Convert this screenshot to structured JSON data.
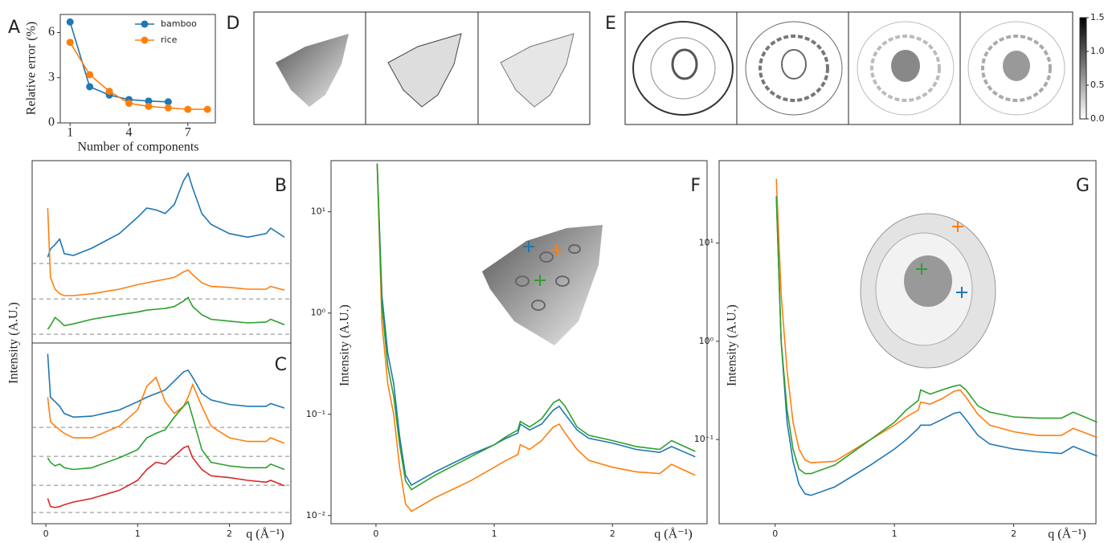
{
  "chart_data": [
    {
      "type": "line",
      "panel": "A",
      "xlabel": "Number of components",
      "ylabel": "Relative error (%)",
      "xlim": [
        0.5,
        8.4
      ],
      "ylim": [
        0,
        7.2
      ],
      "xticks": [
        1,
        4,
        7
      ],
      "yticks": [
        0,
        3,
        6
      ],
      "markers": true,
      "legend": "upper right",
      "series": [
        {
          "name": "bamboo",
          "color": "#1f77b4",
          "x": [
            1,
            2,
            3,
            4,
            5,
            6
          ],
          "values": [
            6.7,
            2.4,
            1.85,
            1.55,
            1.45,
            1.4
          ]
        },
        {
          "name": "rice",
          "color": "#ff7f0e",
          "x": [
            1,
            2,
            3,
            4,
            5,
            6,
            7,
            8
          ],
          "values": [
            5.35,
            3.2,
            2.1,
            1.3,
            1.1,
            1.0,
            0.9,
            0.9
          ]
        }
      ]
    },
    {
      "type": "line",
      "panel": "B",
      "ylabel": "Intensity (A.U.)",
      "xlim": [
        -0.15,
        2.67
      ],
      "ylim": [
        0,
        10
      ],
      "x": [
        0.02,
        0.05,
        0.1,
        0.15,
        0.2,
        0.3,
        0.5,
        0.8,
        1.0,
        1.1,
        1.2,
        1.3,
        1.4,
        1.5,
        1.55,
        1.6,
        1.7,
        1.8,
        2.0,
        2.2,
        2.4,
        2.45,
        2.6
      ],
      "series": [
        {
          "color": "#1f77b4",
          "baseline": 4.36,
          "values": [
            4.7,
            5.15,
            5.4,
            5.7,
            4.9,
            4.8,
            5.2,
            6.0,
            6.9,
            7.4,
            7.3,
            7.1,
            7.6,
            8.9,
            9.3,
            8.5,
            7.1,
            6.5,
            6.0,
            5.8,
            6.0,
            6.3,
            5.8
          ]
        },
        {
          "color": "#ff7f0e",
          "baseline": 2.42,
          "values": [
            7.4,
            3.6,
            2.95,
            2.7,
            2.6,
            2.6,
            2.7,
            2.95,
            3.2,
            3.3,
            3.4,
            3.5,
            3.6,
            3.9,
            4.0,
            3.75,
            3.3,
            3.1,
            3.05,
            2.95,
            2.95,
            3.1,
            2.9
          ]
        },
        {
          "color": "#2ca02c",
          "baseline": 0.48,
          "values": [
            0.75,
            0.95,
            1.4,
            1.2,
            0.95,
            1.05,
            1.3,
            1.55,
            1.7,
            1.8,
            1.85,
            1.9,
            2.0,
            2.3,
            2.5,
            2.0,
            1.55,
            1.3,
            1.2,
            1.1,
            1.15,
            1.3,
            1.0
          ]
        }
      ]
    },
    {
      "type": "line",
      "panel": "C",
      "xlabel": "q (Å⁻¹)",
      "xlim": [
        -0.15,
        2.67
      ],
      "ylim": [
        0,
        10
      ],
      "xticks": [
        0,
        1,
        2
      ],
      "x": [
        0.02,
        0.05,
        0.1,
        0.15,
        0.2,
        0.3,
        0.5,
        0.8,
        1.0,
        1.1,
        1.2,
        1.3,
        1.4,
        1.5,
        1.55,
        1.6,
        1.7,
        1.8,
        2.0,
        2.2,
        2.4,
        2.45,
        2.6
      ],
      "series": [
        {
          "color": "#1f77b4",
          "baseline": 5.33,
          "values": [
            9.4,
            7.0,
            6.75,
            6.5,
            6.1,
            5.9,
            5.95,
            6.3,
            6.75,
            7.0,
            7.2,
            7.4,
            7.9,
            8.4,
            8.5,
            8.1,
            7.2,
            6.85,
            6.6,
            6.5,
            6.5,
            6.65,
            6.4
          ]
        },
        {
          "color": "#ff7f0e",
          "baseline": 3.73,
          "values": [
            7.0,
            5.65,
            5.4,
            5.2,
            5.0,
            4.75,
            4.75,
            5.4,
            6.3,
            7.6,
            8.1,
            6.75,
            6.1,
            6.5,
            7.0,
            7.7,
            6.5,
            5.4,
            4.75,
            4.55,
            4.55,
            4.75,
            4.45
          ]
        },
        {
          "color": "#2ca02c",
          "baseline": 2.13,
          "values": [
            3.65,
            3.4,
            3.2,
            3.3,
            3.1,
            3.0,
            3.1,
            3.65,
            4.1,
            4.75,
            5.0,
            5.2,
            5.9,
            6.5,
            6.75,
            5.9,
            4.1,
            3.4,
            3.2,
            3.1,
            3.1,
            3.3,
            3.0
          ]
        },
        {
          "color": "#d62728",
          "baseline": 0.62,
          "values": [
            1.4,
            0.95,
            0.9,
            0.95,
            1.05,
            1.2,
            1.4,
            1.85,
            2.4,
            3.0,
            3.4,
            3.3,
            3.75,
            4.2,
            4.3,
            3.65,
            3.0,
            2.65,
            2.55,
            2.4,
            2.3,
            2.4,
            2.1
          ]
        }
      ]
    },
    {
      "type": "line",
      "panel": "F",
      "xlabel": "q (Å⁻¹)",
      "ylabel": "Intensity (A.U.)",
      "ylog": true,
      "xlim": [
        -0.38,
        2.8
      ],
      "ylim": [
        0.0083,
        32
      ],
      "xticks": [
        0,
        1,
        2
      ],
      "yticks": [
        {
          "value": 10,
          "label": "10¹"
        },
        {
          "value": 1,
          "label": "10⁰"
        },
        {
          "value": 0.1,
          "label": "10⁻¹"
        },
        {
          "value": 0.01,
          "label": "10⁻²"
        }
      ],
      "x": [
        0.01,
        0.05,
        0.1,
        0.15,
        0.2,
        0.25,
        0.3,
        0.5,
        0.8,
        1.0,
        1.1,
        1.2,
        1.22,
        1.3,
        1.4,
        1.5,
        1.55,
        1.6,
        1.7,
        1.8,
        2.0,
        2.2,
        2.4,
        2.5,
        2.7
      ],
      "series": [
        {
          "color": "#1f77b4",
          "values": [
            30,
            1.5,
            0.4,
            0.2,
            0.06,
            0.025,
            0.02,
            0.027,
            0.04,
            0.05,
            0.058,
            0.065,
            0.08,
            0.07,
            0.08,
            0.11,
            0.12,
            0.1,
            0.07,
            0.058,
            0.052,
            0.045,
            0.042,
            0.048,
            0.038
          ]
        },
        {
          "color": "#ff7f0e",
          "values": [
            30,
            0.8,
            0.2,
            0.1,
            0.03,
            0.013,
            0.011,
            0.015,
            0.022,
            0.03,
            0.035,
            0.04,
            0.05,
            0.045,
            0.055,
            0.075,
            0.08,
            0.065,
            0.045,
            0.035,
            0.03,
            0.027,
            0.026,
            0.032,
            0.025
          ]
        },
        {
          "color": "#2ca02c",
          "values": [
            30,
            1.2,
            0.3,
            0.15,
            0.05,
            0.022,
            0.018,
            0.025,
            0.038,
            0.05,
            0.06,
            0.07,
            0.085,
            0.075,
            0.09,
            0.13,
            0.14,
            0.12,
            0.075,
            0.062,
            0.055,
            0.048,
            0.045,
            0.055,
            0.043
          ]
        }
      ]
    },
    {
      "type": "line",
      "panel": "G",
      "xlabel": "q (Å⁻¹)",
      "ylabel": "Intensity (A.U.)",
      "ylog": true,
      "xlim": [
        -0.47,
        2.69
      ],
      "ylim": [
        0.0139,
        69
      ],
      "xticks": [
        0,
        1,
        2
      ],
      "yticks": [
        {
          "value": 10,
          "label": "10¹"
        },
        {
          "value": 1,
          "label": "10⁰"
        },
        {
          "value": 0.1,
          "label": "10⁻¹"
        }
      ],
      "x": [
        0.01,
        0.05,
        0.1,
        0.15,
        0.2,
        0.25,
        0.3,
        0.5,
        0.8,
        1.0,
        1.1,
        1.2,
        1.22,
        1.3,
        1.4,
        1.5,
        1.55,
        1.6,
        1.7,
        1.8,
        2.0,
        2.2,
        2.4,
        2.5,
        2.7
      ],
      "series": [
        {
          "color": "#1f77b4",
          "values": [
            30,
            1.0,
            0.15,
            0.06,
            0.035,
            0.028,
            0.027,
            0.033,
            0.055,
            0.08,
            0.1,
            0.13,
            0.14,
            0.14,
            0.16,
            0.185,
            0.19,
            0.16,
            0.11,
            0.09,
            0.08,
            0.075,
            0.072,
            0.085,
            0.068
          ]
        },
        {
          "color": "#ff7f0e",
          "values": [
            45,
            3,
            0.5,
            0.15,
            0.08,
            0.062,
            0.058,
            0.06,
            0.1,
            0.14,
            0.17,
            0.2,
            0.24,
            0.23,
            0.26,
            0.31,
            0.32,
            0.27,
            0.18,
            0.14,
            0.12,
            0.11,
            0.11,
            0.13,
            0.105
          ]
        },
        {
          "color": "#2ca02c",
          "values": [
            30,
            1.0,
            0.2,
            0.08,
            0.05,
            0.045,
            0.045,
            0.055,
            0.1,
            0.15,
            0.2,
            0.25,
            0.32,
            0.29,
            0.32,
            0.35,
            0.36,
            0.32,
            0.22,
            0.19,
            0.17,
            0.165,
            0.165,
            0.19,
            0.15
          ]
        }
      ]
    }
  ],
  "images": [
    {
      "panel": "D"
    },
    {
      "panel": "E",
      "colorbar": {
        "lim": [
          0,
          1.5
        ],
        "ticks": [
          {
            "value": 0,
            "label": "0.0"
          },
          {
            "value": 0.5,
            "label": "0.5"
          },
          {
            "value": 1,
            "label": "1.0"
          },
          {
            "value": 1.5,
            "label": "1.5"
          }
        ]
      }
    }
  ]
}
